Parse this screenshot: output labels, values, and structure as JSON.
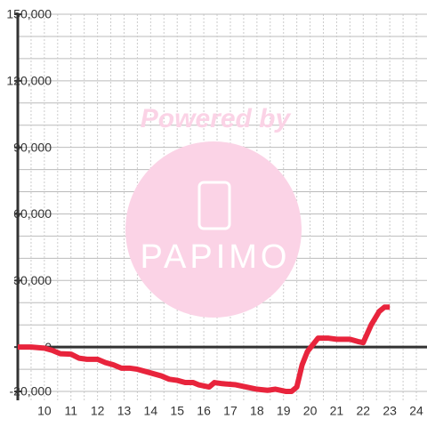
{
  "chart_data": {
    "type": "line",
    "watermark": {
      "top": "Powered by",
      "logo": "PAPIMO"
    },
    "xlim": [
      9,
      24.4
    ],
    "xticks": [
      10,
      11,
      12,
      13,
      14,
      15,
      16,
      17,
      18,
      19,
      20,
      21,
      22,
      23,
      24
    ],
    "x_minor_ticks": [
      9.5,
      10.5,
      11.5,
      12.5,
      13.5,
      14.5,
      15.5,
      16.5,
      17.5,
      18.5,
      19.5,
      20.5,
      21.5,
      22.5,
      23.5
    ],
    "ylim": [
      -24000,
      150000
    ],
    "yticks": [
      {
        "value": -20000,
        "label": "-20,000"
      },
      0,
      {
        "value": 30000,
        "label": "30,000"
      },
      {
        "value": 60000,
        "label": "60,000"
      },
      {
        "value": 90000,
        "label": "90,000"
      },
      {
        "value": 120000,
        "label": "120,000"
      },
      {
        "value": 150000,
        "label": "150,000"
      }
    ],
    "y_minor_ticks": [
      -10000,
      10000,
      20000,
      40000,
      50000,
      70000,
      80000,
      100000,
      110000,
      130000,
      140000
    ],
    "grid": true,
    "series": [
      {
        "color": "#e8243c",
        "x": [
          9.0,
          9.5,
          10.0,
          10.3,
          10.6,
          11.0,
          11.3,
          11.6,
          12.0,
          12.3,
          12.6,
          12.9,
          13.2,
          13.5,
          13.8,
          14.1,
          14.4,
          14.7,
          15.0,
          15.3,
          15.6,
          15.8,
          16.2,
          16.4,
          16.7,
          17.2,
          17.6,
          18.0,
          18.4,
          18.7,
          19.1,
          19.3,
          19.5,
          19.7,
          19.9,
          20.3,
          20.7,
          21.0,
          21.5,
          21.8,
          22.0,
          22.3,
          22.6,
          22.8,
          23.0
        ],
        "values": [
          0,
          0,
          -500,
          -1500,
          -3000,
          -3200,
          -5000,
          -5500,
          -5500,
          -7000,
          -8000,
          -9500,
          -9500,
          -10000,
          -11000,
          -12000,
          -13000,
          -14500,
          -15000,
          -16000,
          -16000,
          -17000,
          -18000,
          -16000,
          -16500,
          -17000,
          -18000,
          -19000,
          -19500,
          -19000,
          -20000,
          -20000,
          -18000,
          -8000,
          -2000,
          4000,
          4000,
          3500,
          3500,
          2500,
          2000,
          10000,
          16000,
          18000,
          18000
        ]
      }
    ]
  }
}
